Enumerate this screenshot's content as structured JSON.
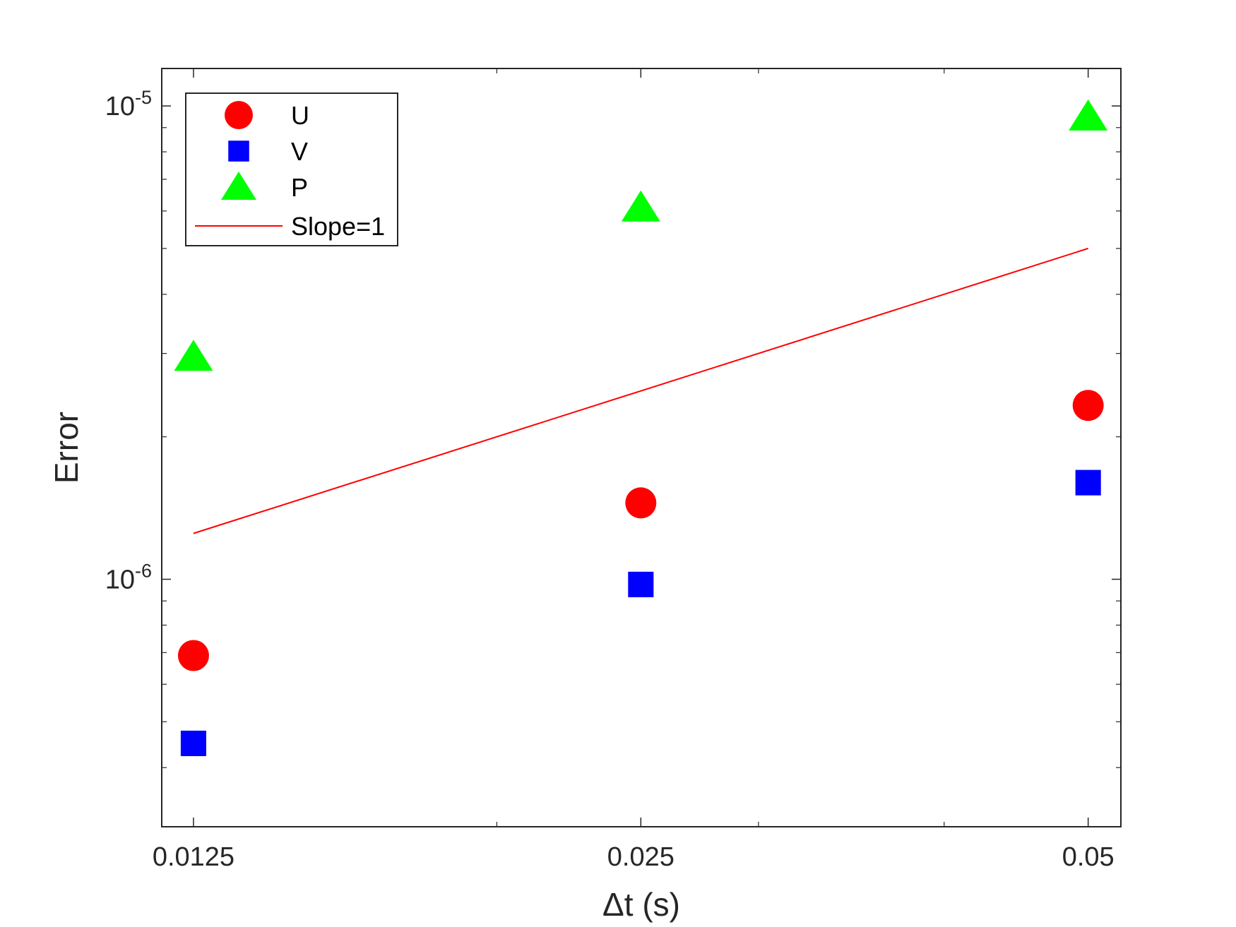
{
  "chart_data": {
    "type": "scatter",
    "xlabel": "Δt (s)",
    "ylabel": "Error",
    "x_scale": "log",
    "y_scale": "log",
    "xlim": [
      0.0119,
      0.0526
    ],
    "ylim": [
      3e-07,
      1.2e-05
    ],
    "x_ticks": [
      0.0125,
      0.025,
      0.05
    ],
    "x_tick_labels": [
      "0.0125",
      "0.025",
      "0.05"
    ],
    "y_tick_labels": [
      {
        "value": 1e-06,
        "base": "10",
        "exp": "-6"
      },
      {
        "value": 1e-05,
        "base": "10",
        "exp": "-5"
      }
    ],
    "grid": false,
    "legend_position": "top-left",
    "series": [
      {
        "name": "U",
        "marker": "circle",
        "color": "#ff0000",
        "x": [
          0.0125,
          0.025,
          0.05
        ],
        "y": [
          6.9e-07,
          1.45e-06,
          2.33e-06
        ]
      },
      {
        "name": "V",
        "marker": "square",
        "color": "#0000ff",
        "x": [
          0.0125,
          0.025,
          0.05
        ],
        "y": [
          4.5e-07,
          9.75e-07,
          1.6e-06
        ]
      },
      {
        "name": "P",
        "marker": "triangle",
        "color": "#00ff00",
        "x": [
          0.0125,
          0.025,
          0.05
        ],
        "y": [
          2.95e-06,
          6.1e-06,
          9.5e-06
        ]
      },
      {
        "name": "Slope=1",
        "marker": "line",
        "color": "#ff0000",
        "x": [
          0.0125,
          0.05
        ],
        "y": [
          1.25e-06,
          5e-06
        ]
      }
    ]
  }
}
